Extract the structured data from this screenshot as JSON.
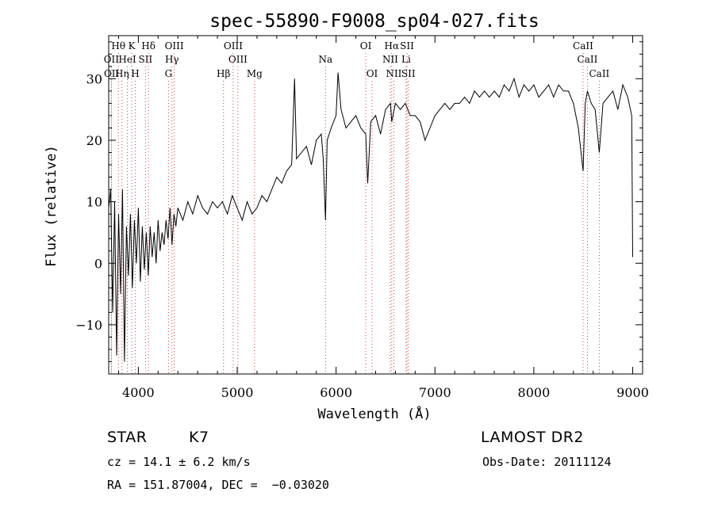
{
  "chart_data": {
    "type": "line",
    "title": "spec-55890-F9008_sp04-027.fits",
    "xlabel": "Wavelength (Å)",
    "ylabel": "Flux (relative)",
    "xlim": [
      3700,
      9100
    ],
    "ylim": [
      -18,
      37
    ],
    "x_ticks": [
      4000,
      5000,
      6000,
      7000,
      8000,
      9000
    ],
    "y_ticks": [
      -10,
      0,
      10,
      20,
      30
    ],
    "x_tick_labels": [
      "4000",
      "5000",
      "6000",
      "7000",
      "8000",
      "9000"
    ],
    "y_tick_labels": [
      "−10",
      "0",
      "10",
      "20",
      "30"
    ],
    "grid": false,
    "series": [
      {
        "color": "#000000",
        "x": [
          3700,
          3720,
          3740,
          3760,
          3780,
          3800,
          3820,
          3840,
          3860,
          3880,
          3900,
          3920,
          3940,
          3960,
          3980,
          4000,
          4020,
          4040,
          4060,
          4080,
          4100,
          4120,
          4140,
          4160,
          4180,
          4200,
          4220,
          4240,
          4260,
          4280,
          4300,
          4320,
          4340,
          4360,
          4380,
          4400,
          4450,
          4500,
          4550,
          4600,
          4650,
          4700,
          4750,
          4800,
          4850,
          4900,
          4950,
          5000,
          5050,
          5100,
          5150,
          5200,
          5250,
          5300,
          5350,
          5400,
          5450,
          5500,
          5550,
          5580,
          5600,
          5650,
          5700,
          5750,
          5800,
          5850,
          5870,
          5893,
          5910,
          5950,
          6000,
          6020,
          6050,
          6100,
          6150,
          6200,
          6250,
          6300,
          6320,
          6350,
          6400,
          6450,
          6500,
          6550,
          6563,
          6600,
          6650,
          6700,
          6750,
          6800,
          6850,
          6900,
          6950,
          7000,
          7050,
          7100,
          7150,
          7200,
          7250,
          7300,
          7350,
          7400,
          7450,
          7500,
          7550,
          7600,
          7650,
          7700,
          7750,
          7800,
          7850,
          7900,
          7950,
          8000,
          8050,
          8100,
          8150,
          8200,
          8250,
          8300,
          8350,
          8400,
          8450,
          8498,
          8520,
          8542,
          8580,
          8620,
          8662,
          8700,
          8750,
          8800,
          8850,
          8900,
          8950,
          8990,
          9000
        ],
        "y": [
          9,
          12,
          -8,
          10,
          -15,
          8,
          -5,
          12,
          -16,
          6,
          -2,
          8,
          -4,
          7,
          0,
          9,
          -3,
          6,
          -1,
          5,
          -2,
          6,
          1,
          5,
          0,
          7,
          2,
          5,
          3,
          7,
          4,
          9,
          3,
          8,
          6,
          9,
          7,
          10,
          8,
          11,
          9,
          8,
          10,
          9,
          10,
          8,
          11,
          9,
          7,
          10,
          8,
          9,
          11,
          10,
          12,
          14,
          13,
          15,
          16,
          30,
          17,
          18,
          19,
          16,
          20,
          21,
          17,
          7,
          20,
          22,
          24,
          31,
          25,
          22,
          23,
          24,
          22,
          21,
          13,
          23,
          24,
          21,
          25,
          26,
          23,
          26,
          25,
          26,
          24,
          24,
          23,
          20,
          22,
          24,
          25,
          26,
          25,
          26,
          26,
          27,
          26,
          28,
          27,
          28,
          27,
          28,
          27,
          29,
          28,
          30,
          27,
          29,
          28,
          29,
          27,
          28,
          29,
          27,
          29,
          28,
          28,
          26,
          22,
          15,
          26,
          28,
          26,
          25,
          18,
          26,
          27,
          28,
          25,
          29,
          27,
          24,
          1
        ]
      }
    ],
    "line_labels": [
      {
        "wavelength": 3798,
        "label": "Hθ",
        "row": 0
      },
      {
        "wavelength": 3934,
        "label": "K",
        "row": 0
      },
      {
        "wavelength": 4102,
        "label": "Hδ",
        "row": 0
      },
      {
        "wavelength": 4363,
        "label": "OIII",
        "row": 0
      },
      {
        "wavelength": 4959,
        "label": "OIII",
        "row": 0
      },
      {
        "wavelength": 6300,
        "label": "OI",
        "row": 0
      },
      {
        "wavelength": 6563,
        "label": "Hα",
        "row": 0
      },
      {
        "wavelength": 6717,
        "label": "SII",
        "row": 0
      },
      {
        "wavelength": 8498,
        "label": "CaII",
        "row": 0
      },
      {
        "wavelength": 3727,
        "label": "OII",
        "row": 1
      },
      {
        "wavelength": 3889,
        "label": "HeI",
        "row": 1
      },
      {
        "wavelength": 4072,
        "label": "SII",
        "row": 1
      },
      {
        "wavelength": 4340,
        "label": "Hγ",
        "row": 1
      },
      {
        "wavelength": 5007,
        "label": "OIII",
        "row": 1
      },
      {
        "wavelength": 5893,
        "label": "Na",
        "row": 1
      },
      {
        "wavelength": 6548,
        "label": "NII",
        "row": 1
      },
      {
        "wavelength": 6708,
        "label": "Li",
        "row": 1
      },
      {
        "wavelength": 8542,
        "label": "CaII",
        "row": 1
      },
      {
        "wavelength": 3729,
        "label": "OII",
        "row": 2
      },
      {
        "wavelength": 3835,
        "label": "Hη",
        "row": 2
      },
      {
        "wavelength": 3969,
        "label": "H",
        "row": 2
      },
      {
        "wavelength": 4305,
        "label": "G",
        "row": 2
      },
      {
        "wavelength": 4861,
        "label": "Hβ",
        "row": 2
      },
      {
        "wavelength": 5175,
        "label": "Mg",
        "row": 2
      },
      {
        "wavelength": 6364,
        "label": "OI",
        "row": 2
      },
      {
        "wavelength": 6584,
        "label": "NII",
        "row": 2
      },
      {
        "wavelength": 6731,
        "label": "SII",
        "row": 2
      },
      {
        "wavelength": 8662,
        "label": "CaII",
        "row": 2
      }
    ],
    "guide_lines_color": "#d04040"
  },
  "footer": {
    "object_class": "STAR",
    "subclass": "K7",
    "survey": "LAMOST DR2",
    "velocity": "cz = 14.1 ± 6.2 km/s",
    "obs_date": "Obs-Date: 20111124",
    "coords": "RA = 151.87004, DEC =  −0.03020"
  }
}
